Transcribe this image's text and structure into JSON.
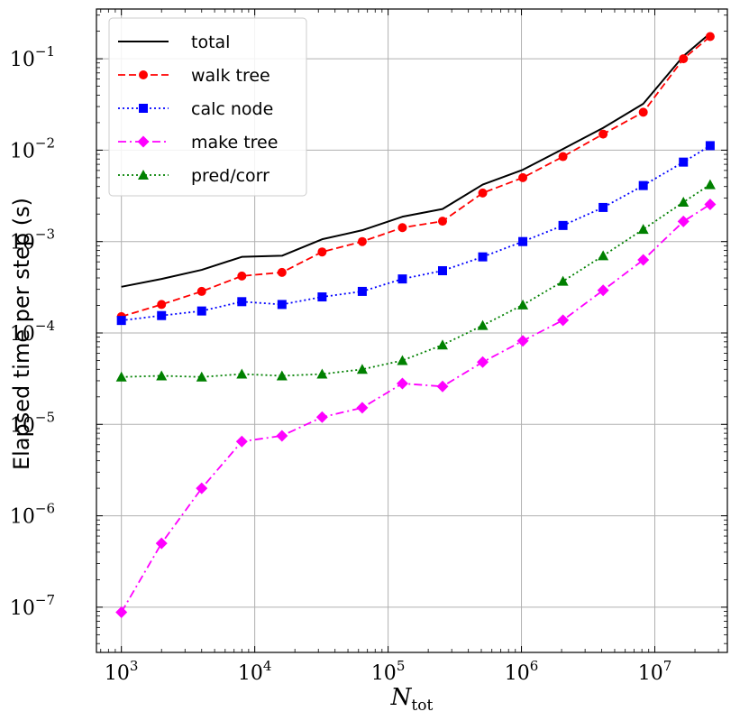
{
  "chart_data": {
    "type": "line",
    "xscale": "log",
    "yscale": "log",
    "xlabel": "N",
    "xlabel_sub": "tot",
    "ylabel": "Elapsed time per step (s)",
    "xlim": [
      650,
      35000000
    ],
    "ylim": [
      3.2e-08,
      0.35
    ],
    "grid": true,
    "legend_position": "top-left",
    "x_ticks": [
      {
        "value": 1000,
        "base": "10",
        "exp": "3"
      },
      {
        "value": 10000,
        "base": "10",
        "exp": "4"
      },
      {
        "value": 100000,
        "base": "10",
        "exp": "5"
      },
      {
        "value": 1000000,
        "base": "10",
        "exp": "6"
      },
      {
        "value": 10000000,
        "base": "10",
        "exp": "7"
      }
    ],
    "y_ticks": [
      {
        "value": 1e-07,
        "base": "10",
        "exp": "−7"
      },
      {
        "value": 1e-06,
        "base": "10",
        "exp": "−6"
      },
      {
        "value": 1e-05,
        "base": "10",
        "exp": "−5"
      },
      {
        "value": 0.0001,
        "base": "10",
        "exp": "−4"
      },
      {
        "value": 0.001,
        "base": "10",
        "exp": "−3"
      },
      {
        "value": 0.01,
        "base": "10",
        "exp": "−2"
      },
      {
        "value": 0.1,
        "base": "10",
        "exp": "−1"
      }
    ],
    "x": [
      1000,
      2000,
      4000,
      8000,
      16000,
      32000,
      64000,
      128000,
      256000,
      512000,
      1024000,
      2048000,
      4096000,
      8192000,
      16384000,
      26000000
    ],
    "series": [
      {
        "name": "total",
        "color": "#000000",
        "dash": "solid",
        "marker": "none",
        "values": [
          0.00032,
          0.00039,
          0.00049,
          0.00068,
          0.0007,
          0.00106,
          0.00133,
          0.00187,
          0.00227,
          0.0042,
          0.0061,
          0.0103,
          0.0175,
          0.0322,
          0.107,
          0.19
        ]
      },
      {
        "name": "walk tree",
        "color": "#ff0000",
        "dash": "dashed",
        "marker": "circle",
        "values": [
          0.000151,
          0.000205,
          0.000285,
          0.00042,
          0.00046,
          0.00077,
          0.001,
          0.00142,
          0.00167,
          0.0034,
          0.005,
          0.0085,
          0.015,
          0.026,
          0.1,
          0.175
        ]
      },
      {
        "name": "calc node",
        "color": "#0000ff",
        "dash": "dotted",
        "marker": "square",
        "values": [
          0.000137,
          0.000155,
          0.000174,
          0.00022,
          0.000205,
          0.000248,
          0.000285,
          0.00039,
          0.00048,
          0.00068,
          0.001,
          0.0015,
          0.00236,
          0.0041,
          0.0074,
          0.0112
        ]
      },
      {
        "name": "make tree",
        "color": "#ff00ff",
        "dash": "dashdot",
        "marker": "diamond",
        "values": [
          8.8e-08,
          5e-07,
          2e-06,
          6.5e-06,
          7.5e-06,
          1.2e-05,
          1.52e-05,
          2.8e-05,
          2.6e-05,
          4.8e-05,
          8.2e-05,
          0.000138,
          0.000293,
          0.00063,
          0.00166,
          0.00255
        ]
      },
      {
        "name": "pred/corr",
        "color": "#008000",
        "dash": "dotted",
        "marker": "triangle",
        "values": [
          3.3e-05,
          3.4e-05,
          3.3e-05,
          3.55e-05,
          3.4e-05,
          3.55e-05,
          4e-05,
          5e-05,
          7.4e-05,
          0.000121,
          0.000203,
          0.000368,
          0.0007,
          0.00136,
          0.0027,
          0.0042
        ]
      }
    ]
  }
}
